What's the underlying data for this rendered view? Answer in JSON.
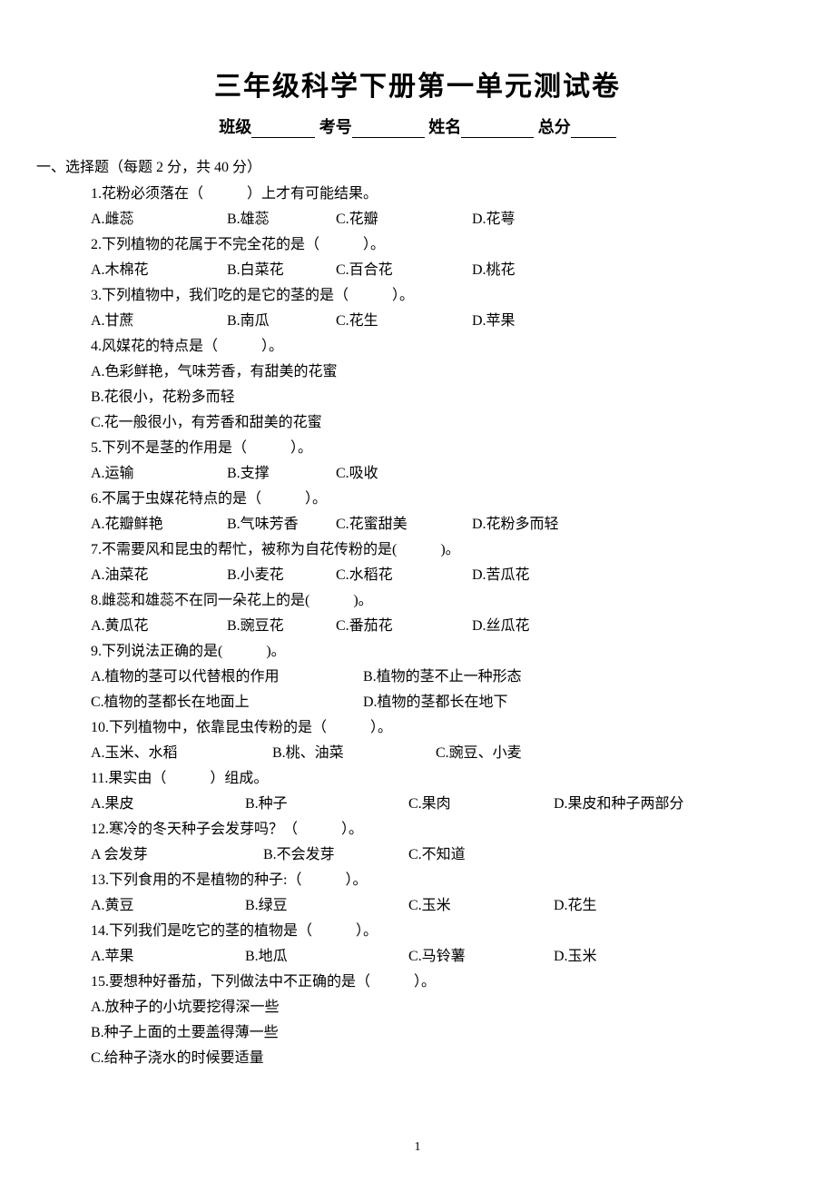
{
  "title": "三年级科学下册第一单元测试卷",
  "info": {
    "class_label": "班级",
    "exam_no_label": "考号",
    "name_label": "姓名",
    "total_label": "总分",
    "blank_widths": {
      "class": 70,
      "exam_no": 80,
      "name": 80,
      "total": 50
    }
  },
  "section1": {
    "header": "一、选择题（每题 2 分，共 40 分）",
    "questions": [
      {
        "text": "1.花粉必须落在（　　　）上才有可能结果。",
        "options": [
          "A.雌蕊",
          "B.雄蕊",
          "C.花瓣",
          "D.花萼"
        ],
        "widths": [
          150,
          120,
          150,
          100
        ]
      },
      {
        "text": "2.下列植物的花属于不完全花的是（　　　）。",
        "options": [
          "A.木棉花",
          "B.白菜花",
          "C.百合花",
          "D.桃花"
        ],
        "widths": [
          150,
          120,
          150,
          100
        ]
      },
      {
        "text": "3.下列植物中，我们吃的是它的茎的是（　　　）。",
        "options": [
          "A.甘蔗",
          "B.南瓜",
          "C.花生",
          "D.苹果"
        ],
        "widths": [
          150,
          120,
          150,
          100
        ]
      },
      {
        "text": "4.风媒花的特点是（　　　）。",
        "options": [
          "A.色彩鲜艳，气味芳香，有甜美的花蜜",
          "B.花很小，花粉多而轻",
          "C.花一般很小，有芳香和甜美的花蜜"
        ],
        "layout": "vertical"
      },
      {
        "text": "5.下列不是茎的作用是（　　　）。",
        "options": [
          "A.运输",
          "B.支撑",
          "C.吸收"
        ],
        "widths": [
          150,
          120,
          120
        ]
      },
      {
        "text": "6.不属于虫媒花特点的是（　　　）。",
        "options": [
          "A.花瓣鲜艳",
          "B.气味芳香",
          "C.花蜜甜美",
          "D.花粉多而轻"
        ],
        "widths": [
          150,
          120,
          150,
          120
        ]
      },
      {
        "text": "7.不需要风和昆虫的帮忙，被称为自花传粉的是(　　　)。",
        "options": [
          "A.油菜花",
          "B.小麦花",
          "C.水稻花",
          "D.苦瓜花"
        ],
        "widths": [
          150,
          120,
          150,
          120
        ]
      },
      {
        "text": "8.雌蕊和雄蕊不在同一朵花上的是(　　　)。",
        "options": [
          "A.黄瓜花",
          "B.豌豆花",
          "C.番茄花",
          "D.丝瓜花"
        ],
        "widths": [
          150,
          120,
          150,
          120
        ]
      },
      {
        "text": "9.下列说法正确的是(　　　)。",
        "options": [
          "A.植物的茎可以代替根的作用",
          "B.植物的茎不止一种形态",
          "C.植物的茎都长在地面上",
          "D.植物的茎都长在地下"
        ],
        "layout": "two-col",
        "widths": [
          300,
          250,
          300,
          250
        ]
      },
      {
        "text": "10.下列植物中，依靠昆虫传粉的是（　　　）。",
        "options": [
          "A.玉米、水稻",
          "B.桃、油菜",
          "C.豌豆、小麦"
        ],
        "widths": [
          200,
          180,
          150
        ]
      },
      {
        "text": "11.果实由（　　　）组成。",
        "options": [
          "A.果皮",
          "B.种子",
          "C.果肉",
          "D.果皮和种子两部分"
        ],
        "widths": [
          170,
          180,
          160,
          200
        ]
      },
      {
        "text": "12.寒冷的冬天种子会发芽吗？（　　　）。",
        "options": [
          "A 会发芽",
          "B.不会发芽",
          "C.不知道"
        ],
        "widths": [
          190,
          160,
          120
        ]
      },
      {
        "text": "13.下列食用的不是植物的种子:（　　　）。",
        "options": [
          "A.黄豆",
          "B.绿豆",
          "C.玉米",
          "D.花生"
        ],
        "widths": [
          170,
          180,
          160,
          100
        ]
      },
      {
        "text": "14.下列我们是吃它的茎的植物是（　　　）。",
        "options": [
          "A.苹果",
          "B.地瓜",
          "C.马铃薯",
          "D.玉米"
        ],
        "widths": [
          170,
          180,
          160,
          100
        ]
      },
      {
        "text": "15.要想种好番茄，下列做法中不正确的是（　　　）。",
        "options": [
          "A.放种子的小坑要挖得深一些",
          "B.种子上面的土要盖得薄一些",
          "C.给种子浇水的时候要适量"
        ],
        "layout": "vertical"
      }
    ]
  },
  "page_number": "1"
}
